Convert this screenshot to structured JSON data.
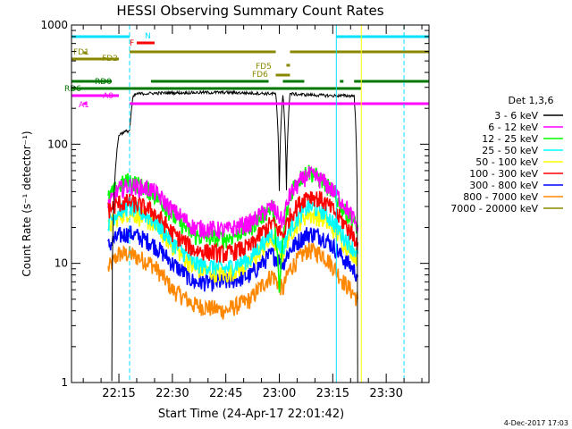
{
  "chart_data": {
    "type": "line",
    "title": "HESSI Observing Summary Count Rates",
    "xlabel": "Start Time (24-Apr-17 22:01:42)",
    "ylabel": "Count Rate (s⁻¹ detector⁻¹)",
    "footer_date": "4-Dec-2017 17:03",
    "yscale": "log",
    "ylim": [
      1,
      1000
    ],
    "xlim": [
      "22:01:42",
      "23:42:00"
    ],
    "x_ticks": [
      "22:15",
      "22:30",
      "22:45",
      "23:00",
      "23:15",
      "23:30"
    ],
    "y_ticks": [
      "1",
      "10",
      "100",
      "1000"
    ],
    "legend": {
      "title": "Det 1,3,6",
      "placement": "right"
    },
    "series": [
      {
        "name": "3 - 6 keV",
        "color": "#000000",
        "x": [
          "22:13",
          "22:15",
          "22:16",
          "22:18",
          "22:19",
          "22:20",
          "22:30",
          "22:45",
          "22:59",
          "23:00",
          "23:01",
          "23:02",
          "23:03",
          "23:05",
          "23:15",
          "23:21",
          "23:22"
        ],
        "values": [
          0,
          120,
          125,
          130,
          250,
          265,
          270,
          272,
          265,
          40,
          265,
          40,
          265,
          262,
          255,
          255,
          0
        ]
      },
      {
        "name": "6 - 12 keV",
        "color": "#ff00ff",
        "x": [
          "22:12",
          "22:15",
          "22:18",
          "22:24",
          "22:30",
          "22:36",
          "22:45",
          "22:52",
          "22:58",
          "23:01",
          "23:03",
          "23:08",
          "23:12",
          "23:18",
          "23:22"
        ],
        "values": [
          30,
          42,
          45,
          42,
          28,
          20,
          19,
          22,
          30,
          22,
          38,
          56,
          50,
          32,
          20
        ]
      },
      {
        "name": "12 - 25 keV",
        "color": "#00ff00",
        "x": [
          "22:12",
          "22:15",
          "22:18",
          "22:24",
          "22:30",
          "22:36",
          "22:45",
          "22:52",
          "22:58",
          "23:00",
          "23:02",
          "23:04",
          "23:08",
          "23:12",
          "23:18",
          "23:22"
        ],
        "values": [
          35,
          45,
          50,
          40,
          25,
          17,
          16,
          20,
          30,
          5,
          25,
          45,
          60,
          50,
          28,
          20
        ]
      },
      {
        "name": "25 - 50 keV",
        "color": "#00ffff",
        "x": [
          "22:12",
          "22:15",
          "22:18",
          "22:24",
          "22:30",
          "22:36",
          "22:45",
          "22:52",
          "22:58",
          "23:01",
          "23:03",
          "23:08",
          "23:12",
          "23:18",
          "23:22"
        ],
        "values": [
          22,
          28,
          30,
          24,
          15,
          10,
          9,
          11,
          18,
          13,
          20,
          30,
          28,
          17,
          12
        ]
      },
      {
        "name": "50 - 100 keV",
        "color": "#ffff00",
        "x": [
          "22:12",
          "22:15",
          "22:18",
          "22:24",
          "22:30",
          "22:36",
          "22:45",
          "22:52",
          "22:58",
          "23:01",
          "23:03",
          "23:08",
          "23:12",
          "23:18",
          "23:22"
        ],
        "values": [
          20,
          25,
          27,
          22,
          14,
          9,
          8,
          10,
          16,
          12,
          18,
          26,
          24,
          15,
          11
        ]
      },
      {
        "name": "100 - 300 keV",
        "color": "#ff0000",
        "x": [
          "22:12",
          "22:15",
          "22:18",
          "22:24",
          "22:30",
          "22:36",
          "22:45",
          "22:52",
          "22:58",
          "23:01",
          "23:03",
          "23:08",
          "23:12",
          "23:18",
          "23:22"
        ],
        "values": [
          28,
          32,
          33,
          28,
          18,
          13,
          12,
          14,
          22,
          17,
          25,
          38,
          34,
          22,
          15
        ]
      },
      {
        "name": "300 - 800 keV",
        "color": "#0000ff",
        "x": [
          "22:12",
          "22:15",
          "22:18",
          "22:24",
          "22:30",
          "22:36",
          "22:45",
          "22:52",
          "22:58",
          "23:01",
          "23:03",
          "23:08",
          "23:12",
          "23:18",
          "23:22"
        ],
        "values": [
          14,
          17,
          18,
          15,
          10,
          7,
          7,
          8,
          12,
          10,
          13,
          18,
          17,
          11,
          8
        ]
      },
      {
        "name": "800 - 7000 keV",
        "color": "#ff8800",
        "x": [
          "22:12",
          "22:15",
          "22:18",
          "22:24",
          "22:30",
          "22:36",
          "22:45",
          "22:52",
          "22:58",
          "23:01",
          "23:03",
          "23:08",
          "23:12",
          "23:18",
          "23:22"
        ],
        "values": [
          9,
          12,
          12,
          10,
          6,
          4.5,
          4,
          5,
          8,
          6,
          9,
          13,
          12,
          7,
          5
        ]
      },
      {
        "name": "7000 - 20000 keV",
        "color": "#888800",
        "x": [],
        "values": []
      }
    ],
    "flags": [
      {
        "label": "N",
        "color": "#00e0ff",
        "segments": [
          [
            "22:01:42",
            "22:18"
          ],
          [
            "23:16",
            "23:42"
          ]
        ]
      },
      {
        "label": "F",
        "color": "#ff0000",
        "segments": [
          [
            "22:20",
            "22:25"
          ]
        ]
      },
      {
        "label": "FD1",
        "color": "#888800",
        "segments": [
          [
            "22:05",
            "22:06"
          ]
        ]
      },
      {
        "label": "FD2",
        "color": "#888800",
        "segments": [
          [
            "22:01:42",
            "22:15"
          ],
          [
            "22:18",
            "22:59"
          ],
          [
            "23:03",
            "23:42"
          ]
        ]
      },
      {
        "label": "FD5",
        "color": "#888800",
        "segments": [
          [
            "23:02",
            "23:03"
          ]
        ]
      },
      {
        "label": "FD6",
        "color": "#888800",
        "segments": [
          [
            "22:59",
            "23:03"
          ]
        ]
      },
      {
        "label": "RD0",
        "color": "#007700",
        "segments": [
          [
            "22:01:42",
            "22:13"
          ],
          [
            "22:24",
            "22:57"
          ],
          [
            "23:01",
            "23:07"
          ],
          [
            "23:17",
            "23:18"
          ],
          [
            "23:21",
            "23:42"
          ]
        ]
      },
      {
        "label": "RD6",
        "color": "#007700",
        "segments": [
          [
            "22:01:42",
            "23:23"
          ]
        ]
      },
      {
        "label": "A0",
        "color": "#ff00ff",
        "segments": [
          [
            "22:01:42",
            "22:15"
          ]
        ]
      },
      {
        "label": "A1",
        "color": "#ff00ff",
        "segments": [
          [
            "22:05",
            "22:06"
          ],
          [
            "22:18",
            "23:42"
          ]
        ]
      }
    ]
  }
}
